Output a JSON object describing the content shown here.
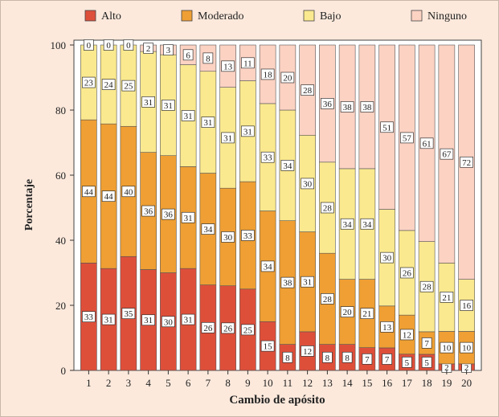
{
  "chart_data": {
    "type": "bar",
    "stacked": true,
    "xlabel": "Cambio de apósito",
    "ylabel": "Porcentaje",
    "ylim": [
      0,
      100
    ],
    "yticks": [
      0,
      20,
      40,
      60,
      80,
      100
    ],
    "categories": [
      "1",
      "2",
      "3",
      "4",
      "5",
      "6",
      "7",
      "8",
      "9",
      "10",
      "11",
      "12",
      "13",
      "14",
      "15",
      "16",
      "17",
      "18",
      "19",
      "20"
    ],
    "legend_position": "top",
    "series": [
      {
        "name": "Alto",
        "color": "#de4f3a",
        "values": [
          33,
          31,
          35,
          31,
          30,
          31,
          26,
          26,
          25,
          15,
          8,
          12,
          8,
          8,
          7,
          7,
          5,
          5,
          2,
          2
        ],
        "labels": [
          "33",
          "31",
          "35",
          "31",
          "30",
          "31",
          "26",
          "26",
          "25",
          "15",
          "8",
          "12",
          "8",
          "8",
          "7",
          "7",
          "5",
          "5",
          "2",
          "2"
        ]
      },
      {
        "name": "Moderado",
        "color": "#ef9f33",
        "values": [
          44,
          44,
          40,
          36,
          36,
          31,
          34,
          30,
          33,
          34,
          38,
          31,
          28,
          20,
          21,
          13,
          12,
          7,
          10,
          10
        ],
        "labels": [
          "44",
          "44",
          "40",
          "36",
          "36",
          "31",
          "34",
          "30",
          "33",
          "34",
          "38",
          "31",
          "28",
          "20",
          "21",
          "13",
          "12",
          "7",
          "10",
          "10"
        ]
      },
      {
        "name": "Bajo",
        "color": "#fbe98f",
        "values": [
          23,
          24,
          25,
          31,
          31,
          31,
          31,
          31,
          31,
          33,
          34,
          30,
          28,
          34,
          34,
          30,
          26,
          28,
          21,
          16
        ],
        "labels": [
          "23",
          "24",
          "25",
          "31",
          "31",
          "31",
          "31",
          "31",
          "31",
          "33",
          "34",
          "30",
          "28",
          "34",
          "34",
          "30",
          "26",
          "28",
          "21",
          "16"
        ]
      },
      {
        "name": "Ninguno",
        "color": "#fcd2c3",
        "values": [
          0,
          0,
          0,
          2,
          3,
          6,
          8,
          13,
          11,
          18,
          20,
          28,
          36,
          38,
          38,
          51,
          57,
          61,
          67,
          72
        ],
        "labels": [
          "0",
          "0",
          "0",
          "2",
          "3",
          "6",
          "8",
          "13",
          "11",
          "18",
          "20",
          "28",
          "36",
          "38",
          "38",
          "51",
          "57",
          "61",
          "67",
          "72"
        ]
      }
    ]
  }
}
